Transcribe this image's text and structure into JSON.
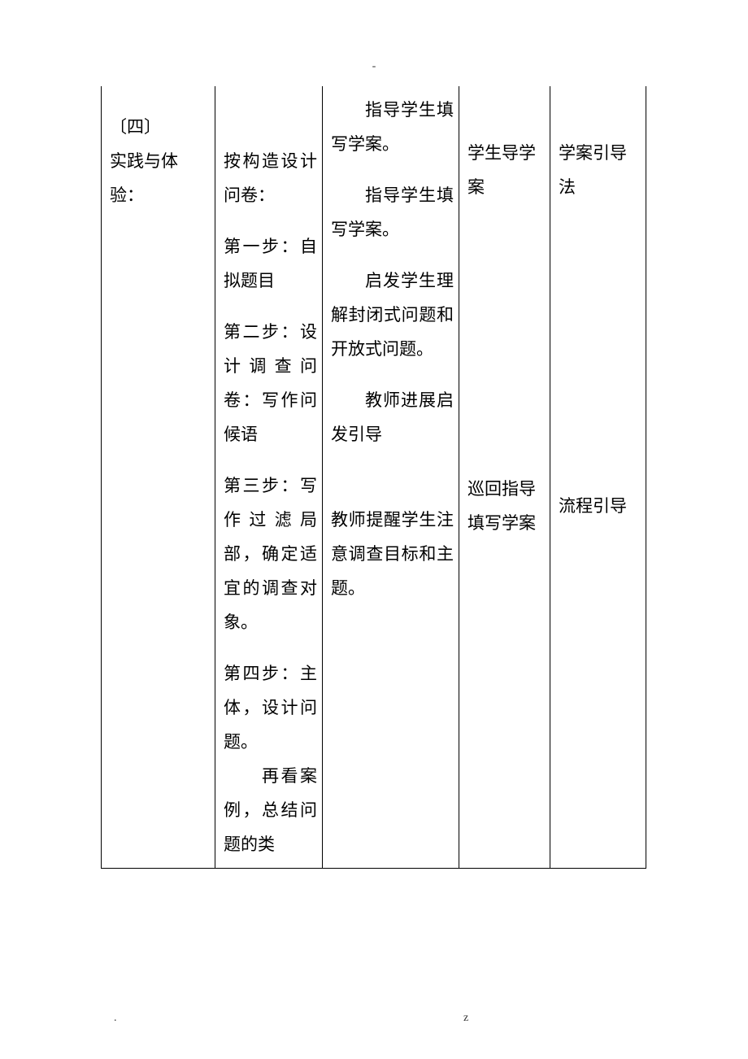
{
  "header": {
    "dash": "-"
  },
  "footer": {
    "dot": ".",
    "z": "z"
  },
  "table": {
    "col1": {
      "line1": "〔四〕",
      "line2": "实践与体验："
    },
    "col2": {
      "p1": "按构造设计问卷：",
      "p2": "第一步：自拟题目",
      "p3": "第二步：设计调查问卷：写作问候语",
      "p4": "第三步：写作过滤局部，确定适宜的调查对象。",
      "p5": "第四步：主体，设计问题。",
      "p6_prefix_spaces": "　　",
      "p6": "再看案例，总结问题的类"
    },
    "col3": {
      "p1": "指导学生填写学案。",
      "p2": "指导学生填写学案。",
      "p3": "启发学生理解封闭式问题和开放式问题。",
      "p4": "教师进展启发引导",
      "p5": "教师提醒学生注意调查目标和主题。"
    },
    "col4": {
      "p1": "学生导学案",
      "p2": "巡回指导",
      "p3": "填写学案"
    },
    "col5": {
      "p1": "学案引导法",
      "p2": "流程引导"
    }
  }
}
